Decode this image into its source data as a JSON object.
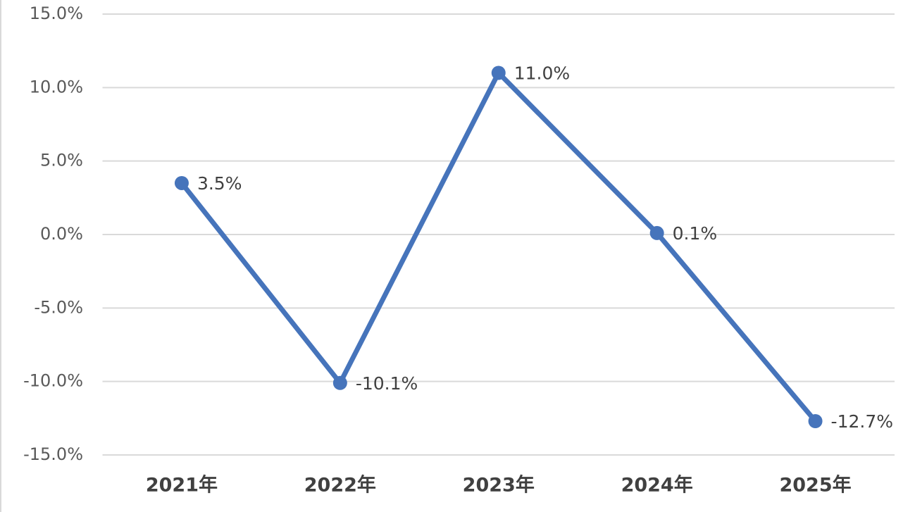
{
  "chart_data": {
    "type": "line",
    "categories": [
      "2021年",
      "2022年",
      "2023年",
      "2024年",
      "2025年"
    ],
    "series": [
      {
        "color": "#4674bb",
        "values": [
          3.5,
          -10.1,
          11.0,
          0.1,
          -12.7
        ],
        "value_labels": [
          "3.5%",
          "-10.1%",
          "11.0%",
          "0.1%",
          "-12.7%"
        ]
      }
    ],
    "ylim": [
      -15,
      15
    ],
    "yticks": [
      {
        "value": -15,
        "label": "-15.0%"
      },
      {
        "value": -10,
        "label": "-10.0%"
      },
      {
        "value": -5,
        "label": "-5.0%"
      },
      {
        "value": 0,
        "label": "0.0%"
      },
      {
        "value": 5,
        "label": "5.0%"
      },
      {
        "value": 10,
        "label": "10.0%"
      },
      {
        "value": 15,
        "label": "15.0%"
      }
    ],
    "grid": true
  }
}
